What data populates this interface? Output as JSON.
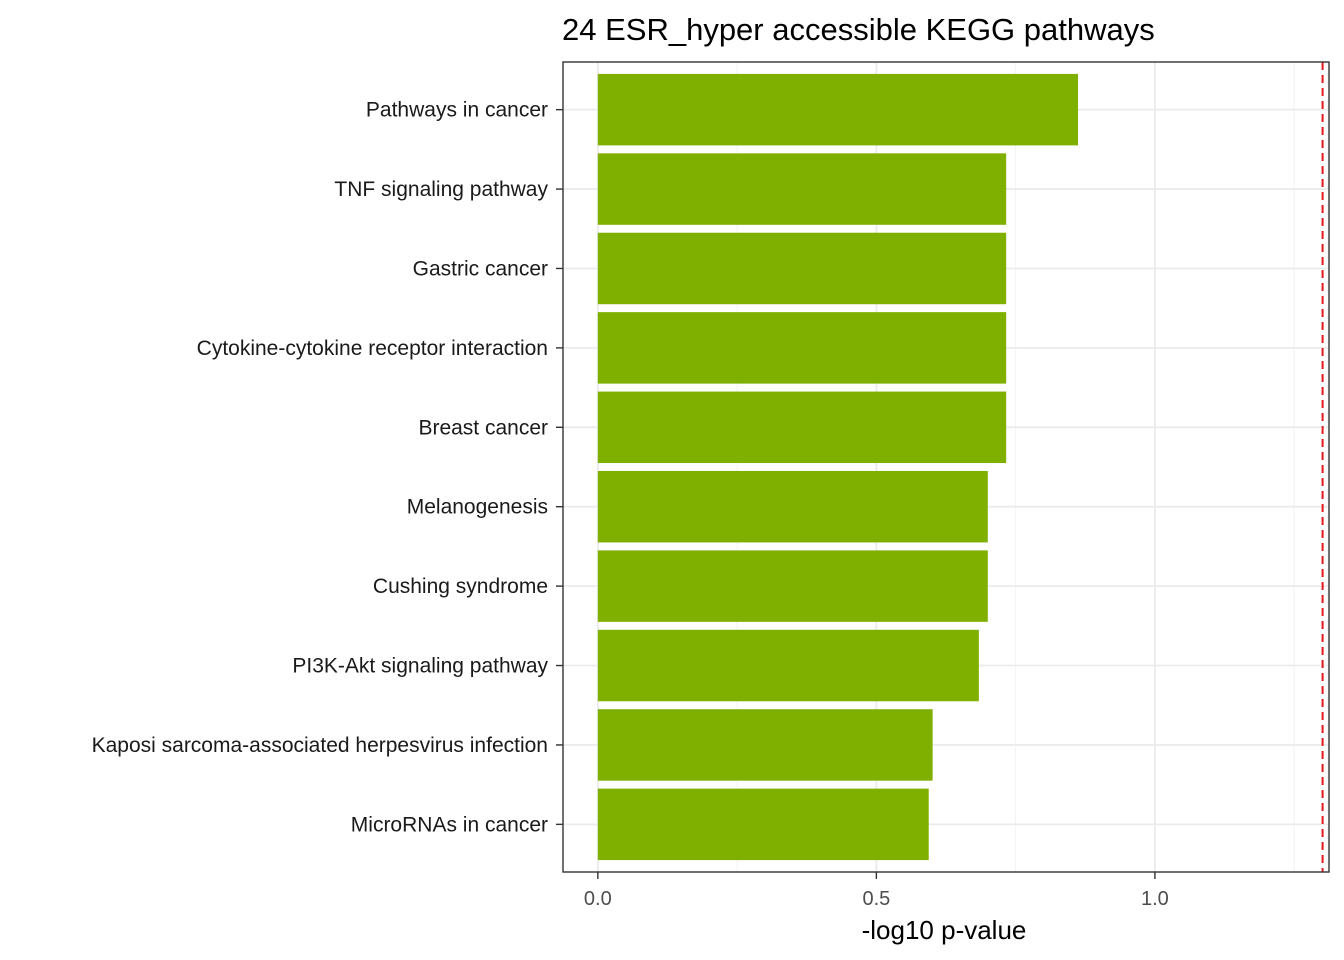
{
  "chart_data": {
    "type": "bar",
    "orientation": "horizontal",
    "title": "24 ESR_hyper accessible KEGG pathways",
    "xlabel": "-log10 p-value",
    "ylabel": "",
    "categories": [
      "Pathways in cancer",
      "TNF signaling pathway",
      "Gastric cancer",
      "Cytokine-cytokine receptor interaction",
      "Breast cancer",
      "Melanogenesis",
      "Cushing syndrome",
      "PI3K-Akt signaling pathway",
      "Kaposi sarcoma-associated herpesvirus infection",
      "MicroRNAs in cancer"
    ],
    "values": [
      0.862,
      0.733,
      0.733,
      0.733,
      0.733,
      0.7,
      0.7,
      0.684,
      0.601,
      0.594
    ],
    "xlim": [
      -0.0625,
      1.3125
    ],
    "x_ticks": [
      0.0,
      0.5,
      1.0
    ],
    "x_tick_labels": [
      "0.0",
      "0.5",
      "1.0"
    ],
    "reference_line": {
      "x": 1.301,
      "style": "dashed",
      "color": "#e41a1c"
    },
    "bar_color": "#7fb000",
    "grid": true,
    "theme": "bw"
  }
}
